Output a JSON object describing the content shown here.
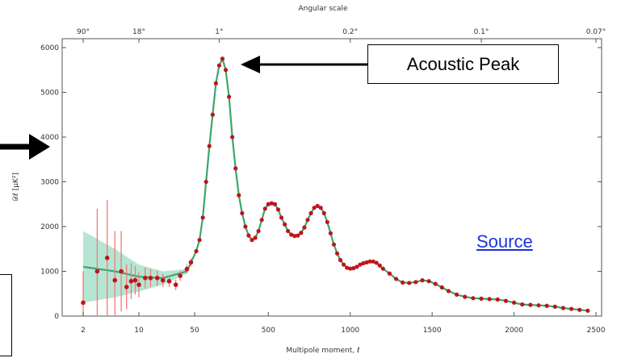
{
  "annotations": {
    "callout_label": "Acoustic Peak",
    "source_link": "Source"
  },
  "colors": {
    "fit_line": "#3aa76d",
    "band": "#9fdcc4",
    "points": "#c0141c",
    "error_bars": "#f07a7a",
    "link": "#1a33d9"
  },
  "chart_data": {
    "type": "scatter",
    "xlabel": "Multipole moment, ℓ",
    "ylabel": "𝒟ℓ [μK²]",
    "top_axis_label": "Angular scale",
    "top_tick_labels": [
      "90°",
      "18°",
      "1°",
      "0.2°",
      "0.1°",
      "0.07°"
    ],
    "top_tick_ell": [
      2,
      10,
      200,
      1000,
      1800,
      2500
    ],
    "x_tick_labels": [
      "2",
      "10",
      "50",
      "500",
      "1000",
      "1500",
      "2000",
      "2500"
    ],
    "x_tick_values": [
      2,
      10,
      50,
      500,
      1000,
      1500,
      2000,
      2500
    ],
    "y_tick_labels": [
      "0",
      "1000",
      "2000",
      "3000",
      "4000",
      "5000",
      "6000"
    ],
    "y_tick_values": [
      0,
      1000,
      2000,
      3000,
      4000,
      5000,
      6000
    ],
    "xlim": [
      2,
      2500
    ],
    "ylim": [
      0,
      6000
    ],
    "x_scale": "log below ℓ=50, linear above",
    "low_ell_points": [
      {
        "x": 2,
        "y": 300,
        "err": 700
      },
      {
        "x": 3,
        "y": 1000,
        "err": 1400
      },
      {
        "x": 4,
        "y": 1300,
        "err": 1300
      },
      {
        "x": 5,
        "y": 800,
        "err": 1100
      },
      {
        "x": 6,
        "y": 1000,
        "err": 900
      },
      {
        "x": 7,
        "y": 650,
        "err": 500
      },
      {
        "x": 8,
        "y": 780,
        "err": 400
      },
      {
        "x": 9,
        "y": 800,
        "err": 320
      },
      {
        "x": 10,
        "y": 700,
        "err": 280
      },
      {
        "x": 12,
        "y": 850,
        "err": 230
      },
      {
        "x": 14,
        "y": 850,
        "err": 200
      },
      {
        "x": 17,
        "y": 850,
        "err": 170
      },
      {
        "x": 20,
        "y": 800,
        "err": 150
      },
      {
        "x": 24,
        "y": 780,
        "err": 130
      },
      {
        "x": 29,
        "y": 700,
        "err": 120
      },
      {
        "x": 33,
        "y": 900,
        "err": 110
      },
      {
        "x": 40,
        "y": 1050,
        "err": 100
      },
      {
        "x": 45,
        "y": 1200,
        "err": 90
      }
    ],
    "high_ell_points": [
      [
        60,
        1450
      ],
      [
        80,
        1700
      ],
      [
        100,
        2200
      ],
      [
        120,
        3000
      ],
      [
        140,
        3800
      ],
      [
        160,
        4500
      ],
      [
        180,
        5200
      ],
      [
        200,
        5600
      ],
      [
        220,
        5750
      ],
      [
        240,
        5500
      ],
      [
        260,
        4900
      ],
      [
        280,
        4000
      ],
      [
        300,
        3300
      ],
      [
        320,
        2700
      ],
      [
        340,
        2300
      ],
      [
        360,
        2000
      ],
      [
        380,
        1800
      ],
      [
        400,
        1700
      ],
      [
        420,
        1750
      ],
      [
        440,
        1900
      ],
      [
        460,
        2150
      ],
      [
        480,
        2400
      ],
      [
        500,
        2500
      ],
      [
        520,
        2520
      ],
      [
        540,
        2500
      ],
      [
        560,
        2380
      ],
      [
        580,
        2200
      ],
      [
        600,
        2050
      ],
      [
        620,
        1900
      ],
      [
        640,
        1820
      ],
      [
        660,
        1790
      ],
      [
        680,
        1800
      ],
      [
        700,
        1860
      ],
      [
        720,
        1980
      ],
      [
        740,
        2150
      ],
      [
        760,
        2300
      ],
      [
        780,
        2420
      ],
      [
        800,
        2460
      ],
      [
        820,
        2420
      ],
      [
        840,
        2300
      ],
      [
        860,
        2100
      ],
      [
        880,
        1850
      ],
      [
        900,
        1600
      ],
      [
        920,
        1400
      ],
      [
        940,
        1250
      ],
      [
        960,
        1150
      ],
      [
        980,
        1080
      ],
      [
        1000,
        1060
      ],
      [
        1020,
        1070
      ],
      [
        1040,
        1100
      ],
      [
        1060,
        1150
      ],
      [
        1080,
        1180
      ],
      [
        1100,
        1200
      ],
      [
        1120,
        1220
      ],
      [
        1140,
        1220
      ],
      [
        1160,
        1190
      ],
      [
        1180,
        1130
      ],
      [
        1200,
        1060
      ],
      [
        1240,
        950
      ],
      [
        1280,
        830
      ],
      [
        1320,
        750
      ],
      [
        1360,
        740
      ],
      [
        1400,
        760
      ],
      [
        1440,
        800
      ],
      [
        1480,
        780
      ],
      [
        1520,
        720
      ],
      [
        1560,
        640
      ],
      [
        1600,
        560
      ],
      [
        1650,
        480
      ],
      [
        1700,
        430
      ],
      [
        1750,
        400
      ],
      [
        1800,
        390
      ],
      [
        1850,
        380
      ],
      [
        1900,
        370
      ],
      [
        1950,
        340
      ],
      [
        2000,
        300
      ],
      [
        2050,
        260
      ],
      [
        2100,
        250
      ],
      [
        2150,
        240
      ],
      [
        2200,
        230
      ],
      [
        2250,
        210
      ],
      [
        2300,
        180
      ],
      [
        2350,
        160
      ],
      [
        2400,
        140
      ],
      [
        2450,
        120
      ]
    ]
  }
}
